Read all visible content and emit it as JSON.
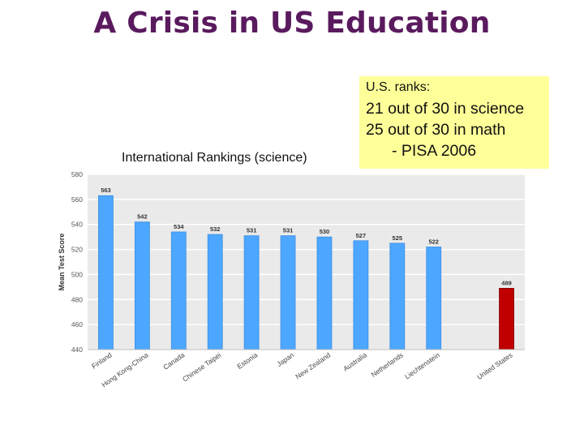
{
  "page": {
    "title": "A Crisis in US Education",
    "subtitle": "International Rankings (science)"
  },
  "note": {
    "heading": "U.S. ranks:",
    "science": "21 out of 30 in science",
    "math": "25 out of 30 in math",
    "source": "- PISA 2006"
  },
  "chart_data": {
    "type": "bar",
    "ylabel": "Mean Test Score",
    "xlabel": "",
    "ylim": [
      440,
      580
    ],
    "yticks": [
      440,
      460,
      480,
      500,
      520,
      540,
      560,
      580
    ],
    "grid": true,
    "categories": [
      "Finland",
      "Hong Kong-China",
      "Canada",
      "Chinese Taipei",
      "Estonia",
      "Japan",
      "New Zealand",
      "Australia",
      "Netherlands",
      "Liechtenstein",
      "",
      "United States"
    ],
    "values": [
      563,
      542,
      534,
      532,
      531,
      531,
      530,
      527,
      525,
      522,
      null,
      489
    ],
    "value_labels": [
      "563",
      "542",
      "534",
      "532",
      "531",
      "531",
      "530",
      "527",
      "525",
      "522",
      "",
      "489"
    ],
    "colors": {
      "bar": "#4da6ff",
      "highlight": "#c00000",
      "plot_bg": "#eaeaea",
      "grid": "#ffffff",
      "text": "#333333"
    },
    "highlight_index": 11
  }
}
